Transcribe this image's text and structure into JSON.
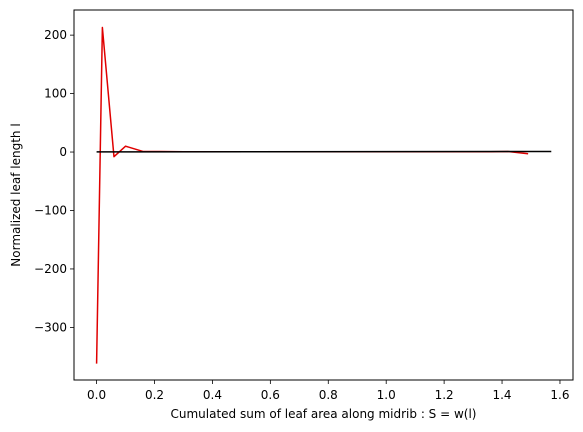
{
  "chart_data": {
    "type": "line",
    "title": "",
    "xlabel": "Cumulated sum of leaf area along midrib : S = w(l)",
    "ylabel": "Normalized leaf length l",
    "xlim": [
      -0.078,
      1.645
    ],
    "ylim": [
      -390,
      243
    ],
    "xticks": [
      0.0,
      0.2,
      0.4,
      0.6,
      0.8,
      1.0,
      1.2,
      1.4,
      1.6
    ],
    "xtick_labels": [
      "0.0",
      "0.2",
      "0.4",
      "0.6",
      "0.8",
      "1.0",
      "1.2",
      "1.4",
      "1.6"
    ],
    "yticks": [
      -300,
      -200,
      -100,
      0,
      100,
      200
    ],
    "ytick_labels": [
      "−300",
      "−200",
      "−100",
      "0",
      "100",
      "200"
    ],
    "grid": false,
    "legend": false,
    "series": [
      {
        "color": "#e00000",
        "x": [
          0.0,
          0.02,
          0.06,
          0.1,
          0.16,
          0.22,
          0.3,
          0.5,
          0.7,
          0.9,
          1.1,
          1.3,
          1.36,
          1.42,
          1.49
        ],
        "y": [
          -362,
          213,
          -8,
          10,
          1,
          1,
          0.5,
          0.5,
          0.5,
          0.5,
          0.5,
          0.5,
          0.5,
          1,
          -3
        ]
      },
      {
        "color": "#000000",
        "x": [
          0.0,
          1.57
        ],
        "y": [
          0.3,
          1.0
        ]
      }
    ]
  }
}
